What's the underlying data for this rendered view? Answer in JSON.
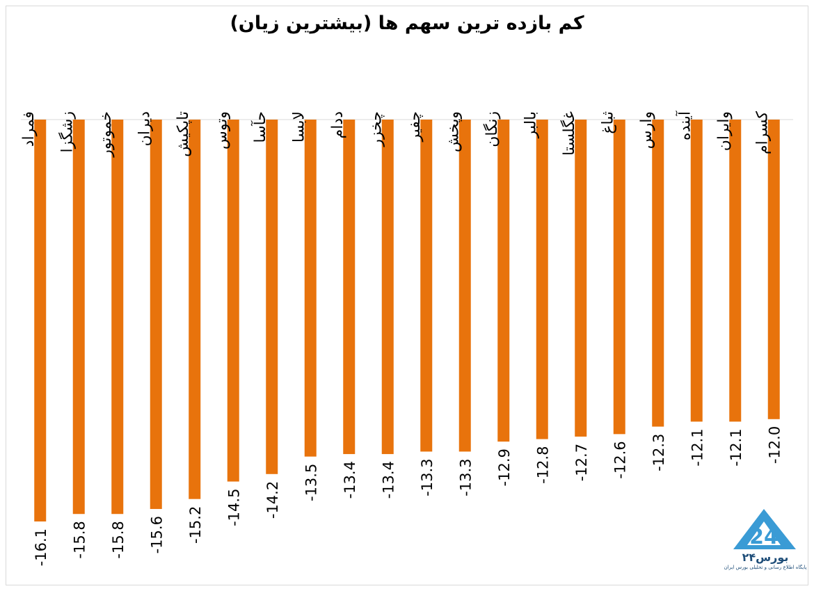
{
  "chart_data": {
    "type": "bar",
    "title": "کم بازده ترین سهم ها (بیشترین زیان)",
    "xlabel": "",
    "ylabel": "",
    "categories": [
      "فمراد",
      "زشگزا",
      "خموتور",
      "دیران",
      "تاپکیش",
      "وتوس",
      "حآسا",
      "لابسا",
      "ددام",
      "چخزر",
      "چفیر",
      "وپخش",
      "زنگان",
      "بالبر",
      "غگلستا",
      "ثباغ",
      "وارس",
      "آینده",
      "وایران",
      "کسرام"
    ],
    "values": [
      -16.1,
      -15.8,
      -15.8,
      -15.6,
      -15.2,
      -14.5,
      -14.2,
      -13.5,
      -13.4,
      -13.4,
      -13.3,
      -13.3,
      -12.9,
      -12.8,
      -12.7,
      -12.6,
      -12.3,
      -12.1,
      -12.1,
      -12.0
    ],
    "ylim": [
      -16.1,
      0
    ],
    "bar_color": "#e8730c",
    "grid": false,
    "legend": "none"
  },
  "logo": {
    "name": "بورس۲۴",
    "tagline": "پایگاه اطلاع رسانی و تحلیلی بورس ایران",
    "color": "#3a9bd5"
  }
}
